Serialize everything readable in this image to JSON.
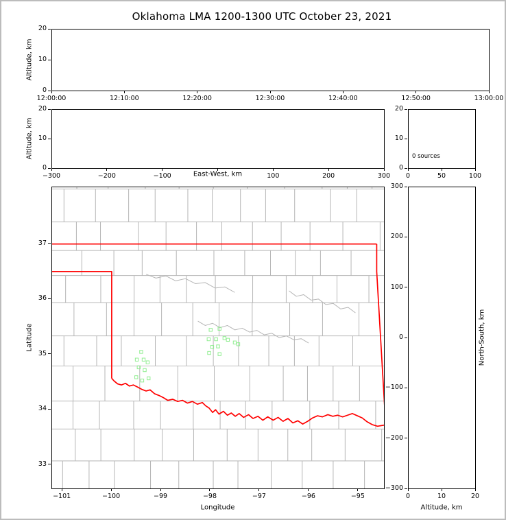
{
  "title": "Oklahoma LMA 1200-1300 UTC October 23, 2021",
  "colors": {
    "background": "#ffffff",
    "frame_border": "#bcbcbc",
    "axis": "#000000",
    "state_border": "#ff0000",
    "county_line": "#b5b5b5",
    "source_marker": "#90ee90"
  },
  "chart_data": [
    {
      "id": "time_altitude",
      "type": "scatter",
      "xlabel": "",
      "ylabel": "Altitude, km",
      "xticks": [
        "12:00:00",
        "12:10:00",
        "12:20:00",
        "12:30:00",
        "12:40:00",
        "12:50:00",
        "13:00:00"
      ],
      "yticks": [
        0,
        10,
        20
      ],
      "ylim": [
        0,
        20
      ],
      "points": []
    },
    {
      "id": "eastwest_altitude",
      "type": "scatter",
      "xlabel": "East-West, km",
      "ylabel": "Altitude, km",
      "xlim": [
        -300,
        300
      ],
      "ylim": [
        0,
        20
      ],
      "xticks": [
        -300,
        -200,
        -100,
        0,
        100,
        200,
        300
      ],
      "xtick_labels": [
        "-300",
        "-200",
        "-100",
        "",
        "100",
        "200",
        "300"
      ],
      "yticks": [
        0,
        10,
        20
      ],
      "points": []
    },
    {
      "id": "altitude_histogram",
      "type": "scatter",
      "annotation": "0 sources",
      "xlim": [
        0,
        100
      ],
      "ylim": [
        0,
        20
      ],
      "xticks": [
        0,
        50,
        100
      ],
      "yticks": [
        0,
        10,
        20
      ],
      "points": []
    },
    {
      "id": "plan_view_map",
      "type": "scatter",
      "xlabel": "Longitude",
      "ylabel": "Latitude",
      "xlim": [
        -101.21,
        -94.47
      ],
      "ylim": [
        32.56,
        38.03
      ],
      "xticks": [
        -101,
        -100,
        -99,
        -98,
        -97,
        -96,
        -95
      ],
      "yticks": [
        33,
        34,
        35,
        36,
        37
      ],
      "points": [
        [
          -99.4,
          35.04
        ],
        [
          -99.49,
          34.9
        ],
        [
          -99.35,
          34.9
        ],
        [
          -99.27,
          34.85
        ],
        [
          -99.45,
          34.76
        ],
        [
          -99.33,
          34.71
        ],
        [
          -99.5,
          34.58
        ],
        [
          -99.38,
          34.52
        ],
        [
          -99.25,
          34.56
        ],
        [
          -97.99,
          35.44
        ],
        [
          -97.81,
          35.46
        ],
        [
          -98.03,
          35.27
        ],
        [
          -97.88,
          35.27
        ],
        [
          -97.71,
          35.29
        ],
        [
          -97.64,
          35.26
        ],
        [
          -97.96,
          35.13
        ],
        [
          -97.84,
          35.14
        ],
        [
          -98.02,
          35.02
        ],
        [
          -97.81,
          35.0
        ],
        [
          -97.5,
          35.21
        ],
        [
          -97.43,
          35.18
        ]
      ]
    },
    {
      "id": "northsouth_altitude",
      "type": "scatter",
      "xlabel": "Altitude, km",
      "ylabel": "North-South, km",
      "xlim": [
        0,
        20
      ],
      "ylim": [
        -300,
        300
      ],
      "xticks": [
        0,
        10,
        20
      ],
      "yticks": [
        -300,
        -200,
        -100,
        0,
        100,
        200,
        300
      ],
      "points": []
    }
  ],
  "map": {
    "state_border_segments": [
      [
        [
          -101.21,
          37.0
        ],
        [
          -94.618,
          37.0
        ]
      ],
      [
        [
          -94.618,
          37.0
        ],
        [
          -94.618,
          36.5
        ],
        [
          -94.43,
          33.63
        ]
      ],
      [
        [
          -101.21,
          36.5
        ],
        [
          -100.0,
          36.5
        ],
        [
          -100.0,
          34.56
        ]
      ],
      [
        [
          -100.0,
          34.56
        ],
        [
          -99.95,
          34.51
        ],
        [
          -99.88,
          34.46
        ],
        [
          -99.8,
          34.44
        ],
        [
          -99.72,
          34.47
        ],
        [
          -99.64,
          34.42
        ],
        [
          -99.56,
          34.44
        ],
        [
          -99.47,
          34.4
        ],
        [
          -99.39,
          34.36
        ],
        [
          -99.3,
          34.33
        ],
        [
          -99.22,
          34.35
        ],
        [
          -99.13,
          34.28
        ],
        [
          -99.04,
          34.25
        ],
        [
          -98.95,
          34.21
        ],
        [
          -98.86,
          34.16
        ],
        [
          -98.76,
          34.18
        ],
        [
          -98.66,
          34.14
        ],
        [
          -98.56,
          34.16
        ],
        [
          -98.46,
          34.11
        ],
        [
          -98.36,
          34.14
        ],
        [
          -98.26,
          34.09
        ],
        [
          -98.16,
          34.12
        ],
        [
          -98.09,
          34.06
        ],
        [
          -98.02,
          34.02
        ],
        [
          -97.95,
          33.94
        ],
        [
          -97.89,
          33.99
        ],
        [
          -97.82,
          33.91
        ],
        [
          -97.73,
          33.96
        ],
        [
          -97.65,
          33.89
        ],
        [
          -97.57,
          33.93
        ],
        [
          -97.49,
          33.87
        ],
        [
          -97.41,
          33.92
        ],
        [
          -97.32,
          33.85
        ],
        [
          -97.22,
          33.9
        ],
        [
          -97.13,
          33.83
        ],
        [
          -97.03,
          33.87
        ],
        [
          -96.93,
          33.8
        ],
        [
          -96.83,
          33.86
        ],
        [
          -96.72,
          33.8
        ],
        [
          -96.62,
          33.85
        ],
        [
          -96.52,
          33.78
        ],
        [
          -96.42,
          33.83
        ],
        [
          -96.32,
          33.75
        ],
        [
          -96.22,
          33.79
        ],
        [
          -96.12,
          33.73
        ],
        [
          -96.02,
          33.78
        ],
        [
          -95.92,
          33.84
        ],
        [
          -95.82,
          33.88
        ],
        [
          -95.72,
          33.86
        ],
        [
          -95.61,
          33.9
        ],
        [
          -95.51,
          33.87
        ],
        [
          -95.41,
          33.89
        ],
        [
          -95.31,
          33.86
        ],
        [
          -95.21,
          33.89
        ],
        [
          -95.11,
          33.92
        ],
        [
          -95.01,
          33.88
        ],
        [
          -94.91,
          33.84
        ],
        [
          -94.81,
          33.77
        ],
        [
          -94.71,
          33.72
        ],
        [
          -94.6,
          33.69
        ],
        [
          -94.47,
          33.71
        ]
      ]
    ],
    "rivers": [
      [
        [
          -98.25,
          35.6
        ],
        [
          -98.1,
          35.52
        ],
        [
          -97.95,
          35.56
        ],
        [
          -97.8,
          35.48
        ],
        [
          -97.65,
          35.52
        ],
        [
          -97.5,
          35.44
        ],
        [
          -97.35,
          35.47
        ],
        [
          -97.2,
          35.4
        ],
        [
          -97.05,
          35.43
        ],
        [
          -96.9,
          35.35
        ],
        [
          -96.75,
          35.38
        ],
        [
          -96.6,
          35.3
        ],
        [
          -96.45,
          35.33
        ],
        [
          -96.3,
          35.26
        ],
        [
          -96.15,
          35.28
        ],
        [
          -96.0,
          35.2
        ]
      ],
      [
        [
          -96.4,
          36.15
        ],
        [
          -96.25,
          36.05
        ],
        [
          -96.1,
          36.08
        ],
        [
          -95.95,
          35.98
        ],
        [
          -95.8,
          36.0
        ],
        [
          -95.65,
          35.9
        ],
        [
          -95.5,
          35.92
        ],
        [
          -95.35,
          35.82
        ],
        [
          -95.2,
          35.85
        ],
        [
          -95.05,
          35.75
        ]
      ],
      [
        [
          -99.3,
          36.45
        ],
        [
          -99.1,
          36.38
        ],
        [
          -98.9,
          36.42
        ],
        [
          -98.7,
          36.33
        ],
        [
          -98.5,
          36.37
        ],
        [
          -98.3,
          36.28
        ],
        [
          -98.1,
          36.3
        ],
        [
          -97.9,
          36.2
        ],
        [
          -97.7,
          36.22
        ],
        [
          -97.5,
          36.12
        ]
      ]
    ]
  }
}
